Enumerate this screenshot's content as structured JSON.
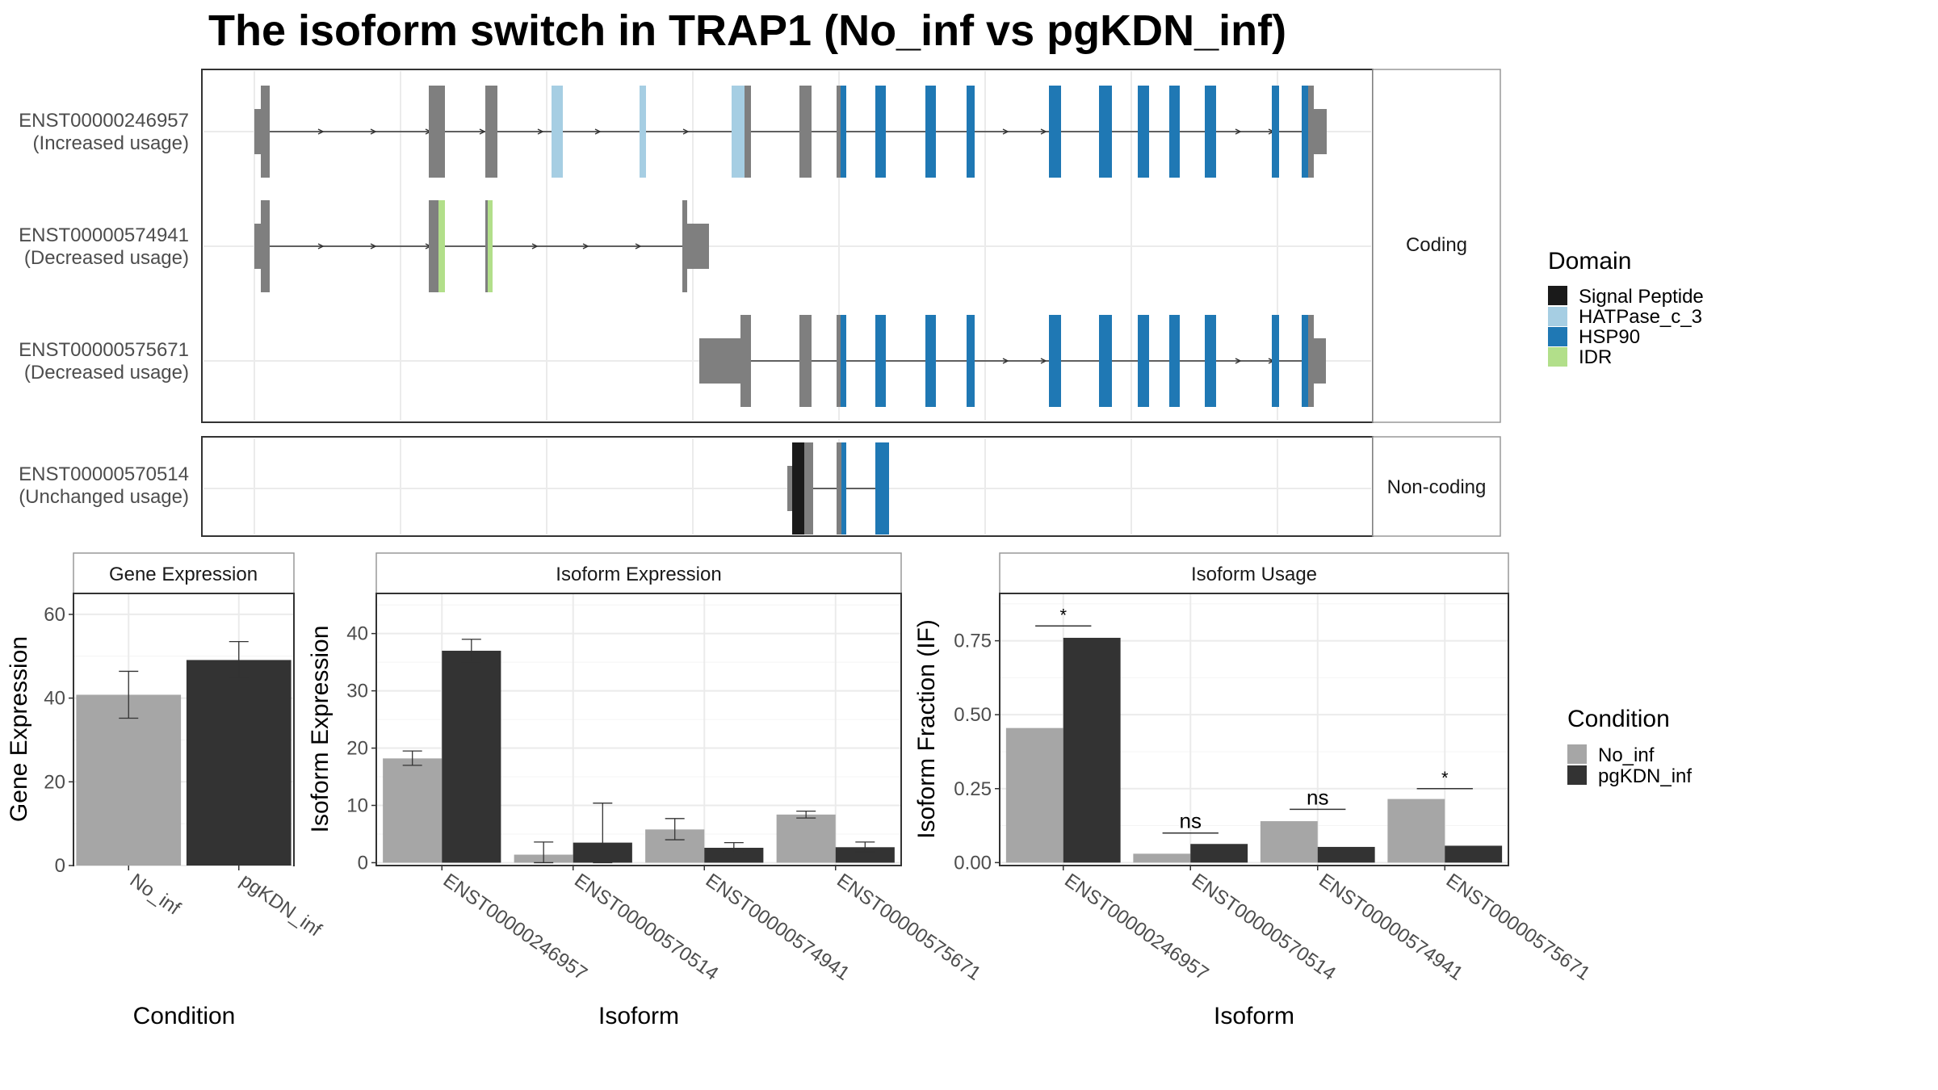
{
  "title": "The isoform switch in TRAP1 (No_inf vs pgKDN_inf)",
  "colors": {
    "no_inf": "#a6a6a6",
    "pgkdn_inf": "#333333",
    "exon": "#7f7f7f",
    "signal_peptide": "#1a1a1a",
    "hatpase": "#a6cee3",
    "hsp90": "#1f78b4",
    "idr": "#b2df8a",
    "grid": "#ebebeb",
    "panel_border": "#333333",
    "strip_border": "#999999"
  },
  "structure": {
    "facets": [
      "Coding",
      "Non-coding"
    ],
    "domain_legend": {
      "title": "Domain",
      "items": [
        {
          "label": "Signal Peptide",
          "color": "#1a1a1a"
        },
        {
          "label": "HATPase_c_3",
          "color": "#a6cee3"
        },
        {
          "label": "HSP90",
          "color": "#1f78b4"
        },
        {
          "label": "IDR",
          "color": "#b2df8a"
        }
      ]
    },
    "isoforms": [
      {
        "id": "ENST00000246957",
        "note": "(Increased usage)",
        "facet": "Coding"
      },
      {
        "id": "ENST00000574941",
        "note": "(Decreased usage)",
        "facet": "Coding"
      },
      {
        "id": "ENST00000575671",
        "note": "(Decreased usage)",
        "facet": "Coding"
      },
      {
        "id": "ENST00000570514",
        "note": "(Unchanged usage)",
        "facet": "Non-coding"
      }
    ]
  },
  "condition_legend": {
    "title": "Condition",
    "items": [
      {
        "label": "No_inf",
        "color": "#a6a6a6"
      },
      {
        "label": "pgKDN_inf",
        "color": "#333333"
      }
    ]
  },
  "chart_data": [
    {
      "type": "bar",
      "title": "Gene Expression",
      "xlabel": "Condition",
      "ylabel": "Gene Expression",
      "categories": [
        "No_inf",
        "pgKDN_inf"
      ],
      "values": [
        40.8,
        49.1
      ],
      "errors": [
        [
          35.2,
          46.4
        ],
        [
          45.0,
          53.5
        ]
      ],
      "ylim": [
        0,
        65
      ],
      "yticks": [
        0,
        20,
        40,
        60
      ],
      "yticklabels": [
        "0",
        "20",
        "40",
        "60"
      ]
    },
    {
      "type": "bar",
      "title": "Isoform Expression",
      "xlabel": "Isoform",
      "ylabel": "Isoform Expression",
      "categories": [
        "ENST00000246957",
        "ENST00000570514",
        "ENST00000574941",
        "ENST00000575671"
      ],
      "series": [
        {
          "name": "No_inf",
          "values": [
            18.2,
            1.4,
            5.8,
            8.4
          ],
          "errors": [
            [
              17.0,
              19.5
            ],
            [
              0.0,
              3.6
            ],
            [
              4.0,
              7.7
            ],
            [
              7.8,
              9.0
            ]
          ]
        },
        {
          "name": "pgKDN_inf",
          "values": [
            37.0,
            3.5,
            2.6,
            2.7
          ],
          "errors": [
            [
              35.0,
              39.0
            ],
            [
              0.0,
              10.4
            ],
            [
              1.8,
              3.5
            ],
            [
              1.9,
              3.6
            ]
          ]
        }
      ],
      "ylim": [
        -0.5,
        47
      ],
      "yticks": [
        0,
        10,
        20,
        30,
        40
      ],
      "yticklabels": [
        "0",
        "10",
        "20",
        "30",
        "40"
      ]
    },
    {
      "type": "bar",
      "title": "Isoform Usage",
      "xlabel": "Isoform",
      "ylabel": "Isoform Fraction (IF)",
      "categories": [
        "ENST00000246957",
        "ENST00000570514",
        "ENST00000574941",
        "ENST00000575671"
      ],
      "series": [
        {
          "name": "No_inf",
          "values": [
            0.455,
            0.03,
            0.14,
            0.215
          ]
        },
        {
          "name": "pgKDN_inf",
          "values": [
            0.76,
            0.063,
            0.053,
            0.057
          ]
        }
      ],
      "significance": [
        "*",
        "ns",
        "ns",
        "*"
      ],
      "sig_heights": [
        0.8,
        0.1,
        0.18,
        0.25
      ],
      "ylim": [
        -0.01,
        0.91
      ],
      "yticks": [
        0,
        0.25,
        0.5,
        0.75
      ],
      "yticklabels": [
        "0.00",
        "0.25",
        "0.50",
        "0.75"
      ]
    }
  ]
}
